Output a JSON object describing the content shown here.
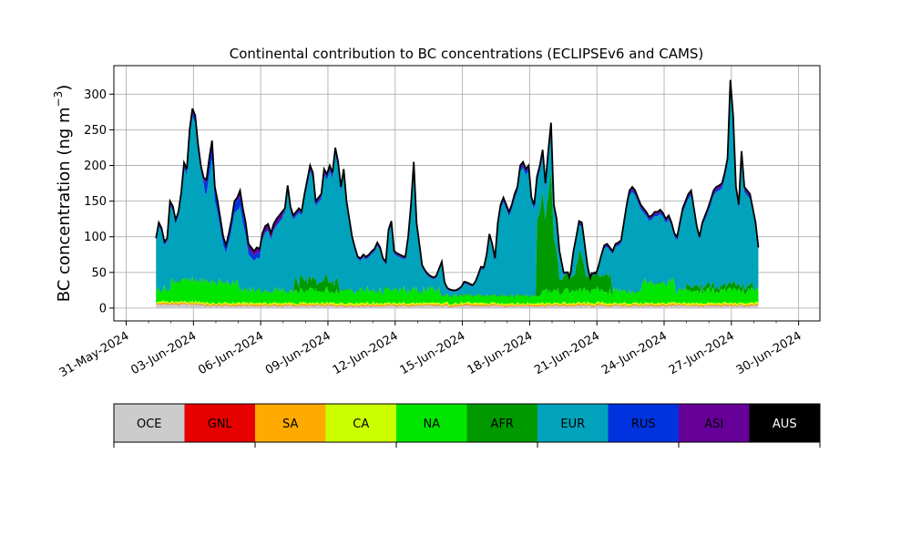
{
  "chart_data": {
    "type": "area",
    "stacked": true,
    "title": "Continental contribution to BC concentrations (ECLIPSEv6 and CAMS)",
    "ylabel_main": "BC concentration (ng m",
    "ylabel_sup": "−3",
    "ylabel_close": ")",
    "xlabel": "",
    "grid": true,
    "xlim": [
      -0.55,
      30.95
    ],
    "ylim": [
      -18,
      340
    ],
    "yticks": [
      0,
      50,
      100,
      150,
      200,
      250,
      300
    ],
    "xtick_days": [
      0,
      3,
      6,
      9,
      12,
      15,
      18,
      21,
      24,
      27,
      30
    ],
    "xtick_labels": [
      "31-May-2024",
      "03-Jun-2024",
      "06-Jun-2024",
      "09-Jun-2024",
      "12-Jun-2024",
      "15-Jun-2024",
      "18-Jun-2024",
      "21-Jun-2024",
      "24-Jun-2024",
      "27-Jun-2024",
      "30-Jun-2024"
    ],
    "x_start_day": 1.33,
    "x_step_hours": 3,
    "series_colors": {
      "OCE": "#cccccc",
      "GNL": "#e60000",
      "SA": "#ffaa00",
      "CA": "#ccff00",
      "NA": "#00e600",
      "AFR": "#009900",
      "EUR": "#00a3bb",
      "RUS": "#0033dd",
      "ASI": "#660099",
      "AUS": "#000000"
    },
    "total": [
      98,
      120,
      112,
      93,
      98,
      150,
      143,
      124,
      135,
      162,
      204,
      195,
      250,
      280,
      270,
      230,
      200,
      183,
      180,
      210,
      235,
      170,
      150,
      125,
      100,
      88,
      105,
      125,
      150,
      155,
      165,
      140,
      120,
      90,
      85,
      80,
      85,
      83,
      105,
      115,
      118,
      105,
      118,
      125,
      130,
      135,
      140,
      172,
      142,
      130,
      135,
      140,
      136,
      160,
      180,
      200,
      190,
      150,
      155,
      160,
      195,
      188,
      200,
      190,
      225,
      205,
      170,
      195,
      150,
      125,
      100,
      85,
      72,
      70,
      75,
      72,
      75,
      80,
      83,
      92,
      85,
      70,
      65,
      110,
      122,
      80,
      77,
      75,
      73,
      72,
      100,
      145,
      205,
      120,
      90,
      60,
      53,
      48,
      45,
      43,
      45,
      55,
      65,
      36,
      28,
      26,
      25,
      25,
      27,
      30,
      37,
      36,
      34,
      32,
      37,
      47,
      58,
      57,
      75,
      104,
      90,
      70,
      120,
      145,
      155,
      145,
      135,
      145,
      160,
      170,
      200,
      205,
      195,
      200,
      155,
      145,
      185,
      200,
      222,
      175,
      220,
      260,
      145,
      125,
      80,
      60,
      40,
      35,
      50,
      80,
      100,
      122,
      120,
      90,
      60,
      40,
      38,
      45,
      60,
      75,
      88,
      90,
      85,
      80,
      90,
      92,
      95,
      120,
      145,
      165,
      170,
      165,
      155,
      145,
      140,
      135,
      128,
      130,
      135,
      135,
      138,
      133,
      125,
      130,
      120,
      105,
      100,
      120,
      140,
      150,
      160,
      165,
      140,
      115,
      100,
      120,
      130,
      140,
      152,
      165,
      170,
      172,
      175,
      190,
      210,
      320,
      270,
      170,
      145,
      220,
      170,
      165,
      160,
      140,
      120,
      85
    ]
  },
  "legend": {
    "items": [
      {
        "label": "OCE",
        "color": "#cccccc",
        "text_color": "#000000"
      },
      {
        "label": "GNL",
        "color": "#e60000",
        "text_color": "#000000"
      },
      {
        "label": "SA",
        "color": "#ffaa00",
        "text_color": "#000000"
      },
      {
        "label": "CA",
        "color": "#ccff00",
        "text_color": "#000000"
      },
      {
        "label": "NA",
        "color": "#00e600",
        "text_color": "#000000"
      },
      {
        "label": "AFR",
        "color": "#009900",
        "text_color": "#000000"
      },
      {
        "label": "EUR",
        "color": "#00a3bb",
        "text_color": "#000000"
      },
      {
        "label": "RUS",
        "color": "#0033dd",
        "text_color": "#000000"
      },
      {
        "label": "ASI",
        "color": "#660099",
        "text_color": "#000000"
      },
      {
        "label": "AUS",
        "color": "#000000",
        "text_color": "#ffffff"
      }
    ]
  }
}
